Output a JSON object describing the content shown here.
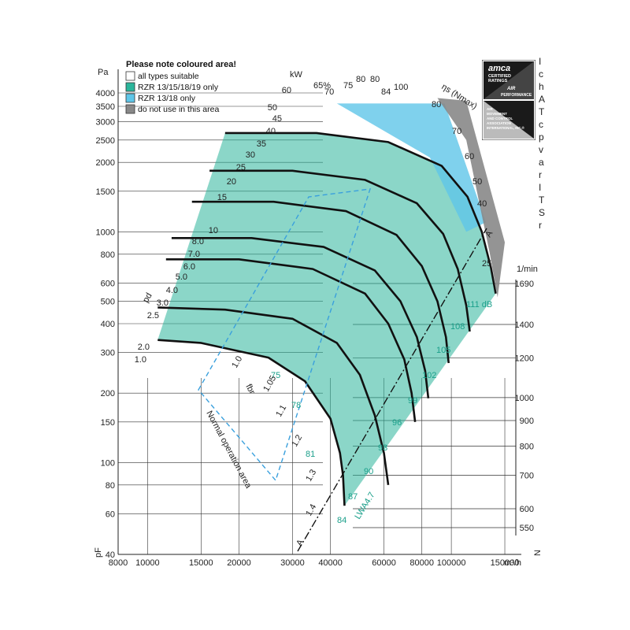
{
  "legend": {
    "title": "Please note coloured area!",
    "items": [
      {
        "label": "all types suitable",
        "color": "#ffffff"
      },
      {
        "label": "RZR 13/15/18/19 only",
        "color": "#2bb59b"
      },
      {
        "label": "RZR 13/18 only",
        "color": "#5fc6e8"
      },
      {
        "label": "do not use in this area",
        "color": "#888888"
      }
    ]
  },
  "colors": {
    "teal": "#2bb59b",
    "blue": "#5fc6e8",
    "grey": "#888888",
    "text_teal": "#1a9f8a"
  },
  "badge": {
    "brand": "amca",
    "line1": "CERTIFIED",
    "line2": "RATINGS",
    "line3": "AIR",
    "line4": "PERFORMANCE",
    "line5": "AIR",
    "line6": "MOVEMENT",
    "line7": "AND CONTROL",
    "line8": "ASSOCIATION",
    "line9": "INTERNATIONAL, INC.®"
  },
  "right_cut_glyphs": [
    "I",
    "c",
    "h",
    "A",
    "T",
    "c",
    "p",
    "v",
    "a",
    "r",
    "I",
    "T",
    "S",
    "r"
  ],
  "chart_data": {
    "type": "line",
    "xlabel": "m³/h",
    "ylabel": "pF",
    "y_unit": "Pa",
    "x_scale": "log",
    "y_scale": "log",
    "xlim": [
      8000,
      170000
    ],
    "ylim": [
      40,
      4000
    ],
    "x_ticks": [
      8000,
      10000,
      15000,
      20000,
      30000,
      40000,
      60000,
      80000,
      100000,
      150000
    ],
    "x_tick_labels": [
      "8000",
      "10000",
      "15000",
      "20000",
      "30000",
      "40000",
      "60000",
      "80000",
      "100000",
      "150000"
    ],
    "y_ticks": [
      40,
      60,
      80,
      100,
      150,
      200,
      300,
      400,
      500,
      600,
      800,
      1000,
      1500,
      2000,
      2500,
      3000,
      3500,
      4000
    ],
    "y_tick_labels": [
      "40",
      "60",
      "80",
      "100",
      "150",
      "200",
      "300",
      "400",
      "500",
      "600",
      "800",
      "1000",
      "1500",
      "2000",
      "2500",
      "3000",
      "3500",
      "4000"
    ],
    "speed_axis": {
      "label": "N",
      "unit": "1/min",
      "ticks": [
        550,
        600,
        700,
        800,
        900,
        1000,
        1200,
        1400,
        1690
      ],
      "tick_labels": [
        "550",
        "600",
        "700",
        "800",
        "900",
        "1000",
        "1200",
        "1400",
        "1690"
      ]
    },
    "power_axis": {
      "label": "kW",
      "values": [
        "60",
        "50",
        "45",
        "40",
        "35",
        "30",
        "25",
        "20",
        "15",
        "10",
        "8.0",
        "7.0",
        "6.0",
        "5.0",
        "4.0",
        "3.0",
        "2.5",
        "2.0",
        "1.0"
      ]
    },
    "efficiency_axis": {
      "label": "ηs (Nmax)",
      "values": [
        "65%",
        "70",
        "75",
        "80",
        "80",
        "84",
        "100",
        "80",
        "70",
        "60",
        "50",
        "40",
        "25"
      ],
      "marker": "A"
    },
    "pd_label": "pd",
    "dynamic_pressure_label": "Pa",
    "fbr_label": "fbr",
    "fbr_values": [
      "1.0",
      "1.05",
      "1.1",
      "1.2",
      "1.3",
      "1.4"
    ],
    "sound_values": [
      "75",
      "78",
      "81",
      "84",
      "87",
      "90",
      "93",
      "96",
      "99",
      "102",
      "105",
      "108",
      "111 dB"
    ],
    "sound_label": "LWA4.7",
    "normal_operation_label": "Normal operation area",
    "line_a_label": "A",
    "speeds": [
      550,
      600,
      700,
      800,
      900,
      1000,
      1200,
      1400,
      1690
    ],
    "rpm_curves": [
      {
        "rpm": 550,
        "points": [
          [
            10800,
            340
          ],
          [
            15000,
            330
          ],
          [
            25000,
            285
          ],
          [
            33000,
            225
          ],
          [
            40000,
            155
          ],
          [
            43000,
            110
          ],
          [
            44000,
            88
          ],
          [
            44500,
            65
          ]
        ]
      },
      {
        "rpm": 700,
        "points": [
          [
            10800,
            470
          ],
          [
            18000,
            460
          ],
          [
            30000,
            420
          ],
          [
            42000,
            330
          ],
          [
            50000,
            240
          ],
          [
            56000,
            160
          ],
          [
            60000,
            110
          ],
          [
            62000,
            80
          ]
        ]
      },
      {
        "rpm": 900,
        "points": [
          [
            11500,
            760
          ],
          [
            20000,
            760
          ],
          [
            35000,
            690
          ],
          [
            52000,
            540
          ],
          [
            62000,
            400
          ],
          [
            70000,
            280
          ],
          [
            74000,
            200
          ],
          [
            76000,
            150
          ]
        ]
      },
      {
        "rpm": 1000,
        "points": [
          [
            12000,
            940
          ],
          [
            22000,
            940
          ],
          [
            38000,
            860
          ],
          [
            56000,
            680
          ],
          [
            68000,
            500
          ],
          [
            77000,
            350
          ],
          [
            82000,
            250
          ],
          [
            84000,
            190
          ]
        ]
      },
      {
        "rpm": 1200,
        "points": [
          [
            14000,
            1350
          ],
          [
            26000,
            1350
          ],
          [
            45000,
            1230
          ],
          [
            66000,
            970
          ],
          [
            80000,
            710
          ],
          [
            90000,
            500
          ],
          [
            96000,
            350
          ],
          [
            98000,
            270
          ]
        ]
      },
      {
        "rpm": 1400,
        "points": [
          [
            16000,
            1840
          ],
          [
            30000,
            1840
          ],
          [
            52000,
            1680
          ],
          [
            77000,
            1330
          ],
          [
            94000,
            980
          ],
          [
            105000,
            690
          ],
          [
            112000,
            480
          ],
          [
            115000,
            370
          ]
        ]
      },
      {
        "rpm": 1690,
        "points": [
          [
            18000,
            2680
          ],
          [
            36000,
            2680
          ],
          [
            62000,
            2450
          ],
          [
            93000,
            1930
          ],
          [
            113000,
            1420
          ],
          [
            126000,
            1000
          ],
          [
            135000,
            700
          ],
          [
            140000,
            540
          ]
        ]
      }
    ]
  }
}
